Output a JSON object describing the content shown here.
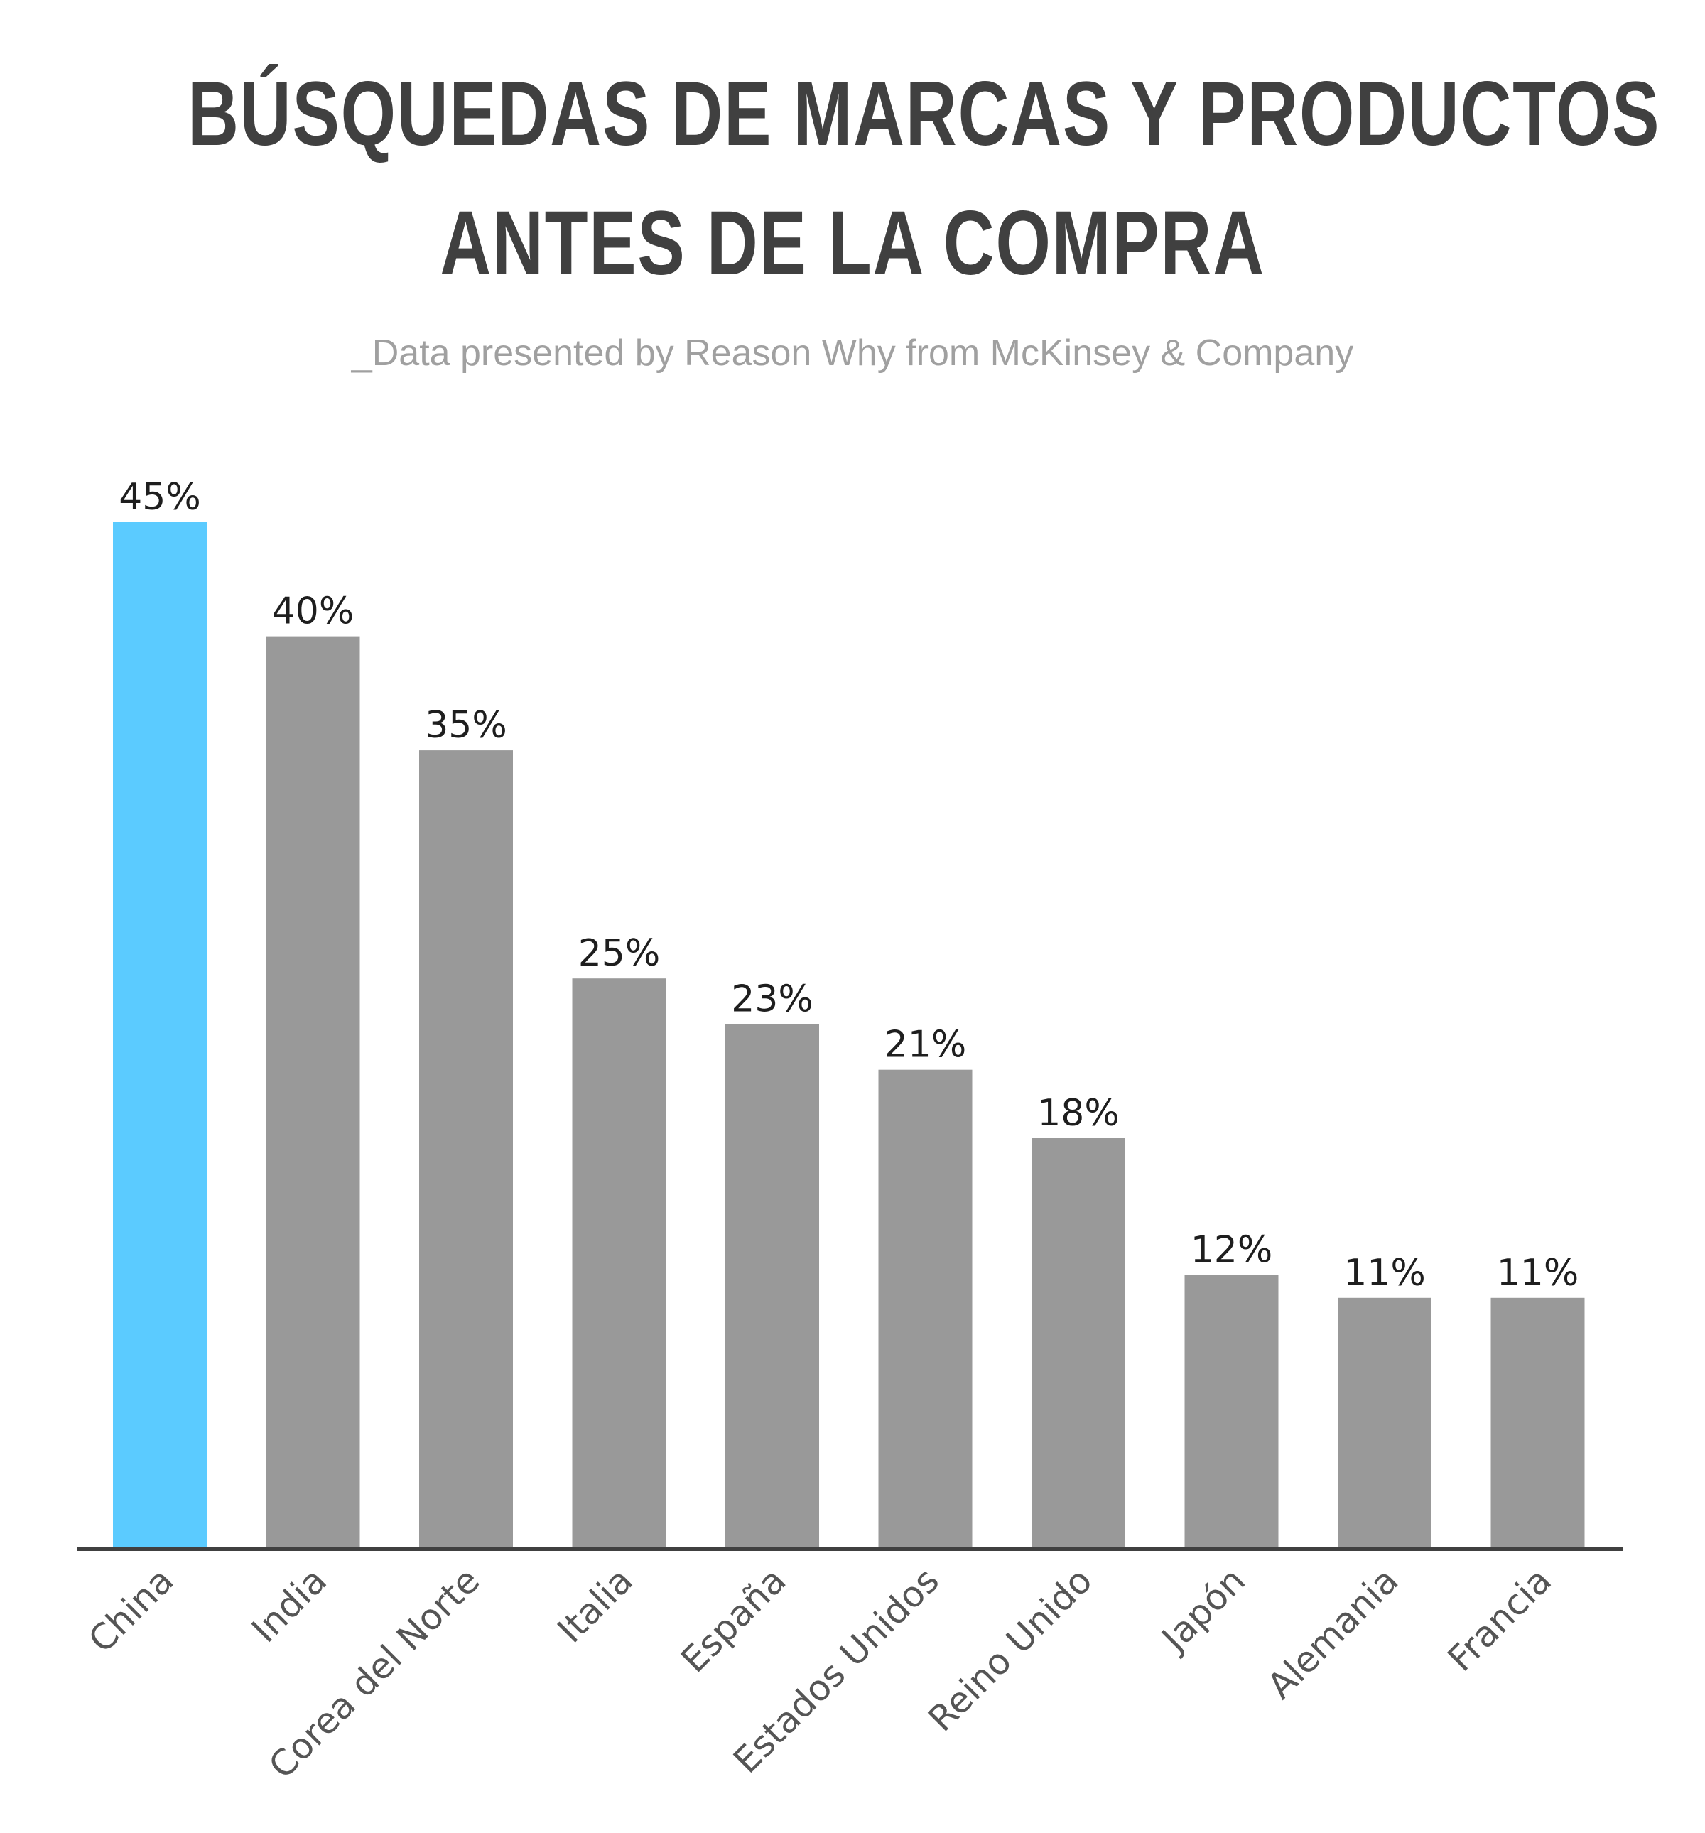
{
  "title_lines": [
    "BÚSQUEDAS DE MARCAS Y PRODUCTOS",
    "ANTES DE LA COMPRA"
  ],
  "subtitle": "_Data presented by Reason Why from McKinsey & Company",
  "chart_data": {
    "type": "bar",
    "title": "BÚSQUEDAS DE MARCAS Y PRODUCTOS ANTES DE LA COMPRA",
    "subtitle": "_Data presented by Reason Why from McKinsey & Company",
    "categories": [
      "China",
      "India",
      "Corea del Norte",
      "Italia",
      "España",
      "Estados Unidos",
      "Reino Unido",
      "Japón",
      "Alemania",
      "Francia"
    ],
    "values": [
      45,
      40,
      35,
      25,
      23,
      21,
      18,
      12,
      11,
      11
    ],
    "value_labels": [
      "45%",
      "40%",
      "35%",
      "25%",
      "23%",
      "21%",
      "18%",
      "12%",
      "11%",
      "11%"
    ],
    "ylim": [
      0,
      45
    ],
    "grid": false,
    "legend": "none",
    "colors": {
      "highlight": "#5bcbff",
      "default": "#999999",
      "axis": "#404040"
    },
    "highlight_index": 0
  }
}
